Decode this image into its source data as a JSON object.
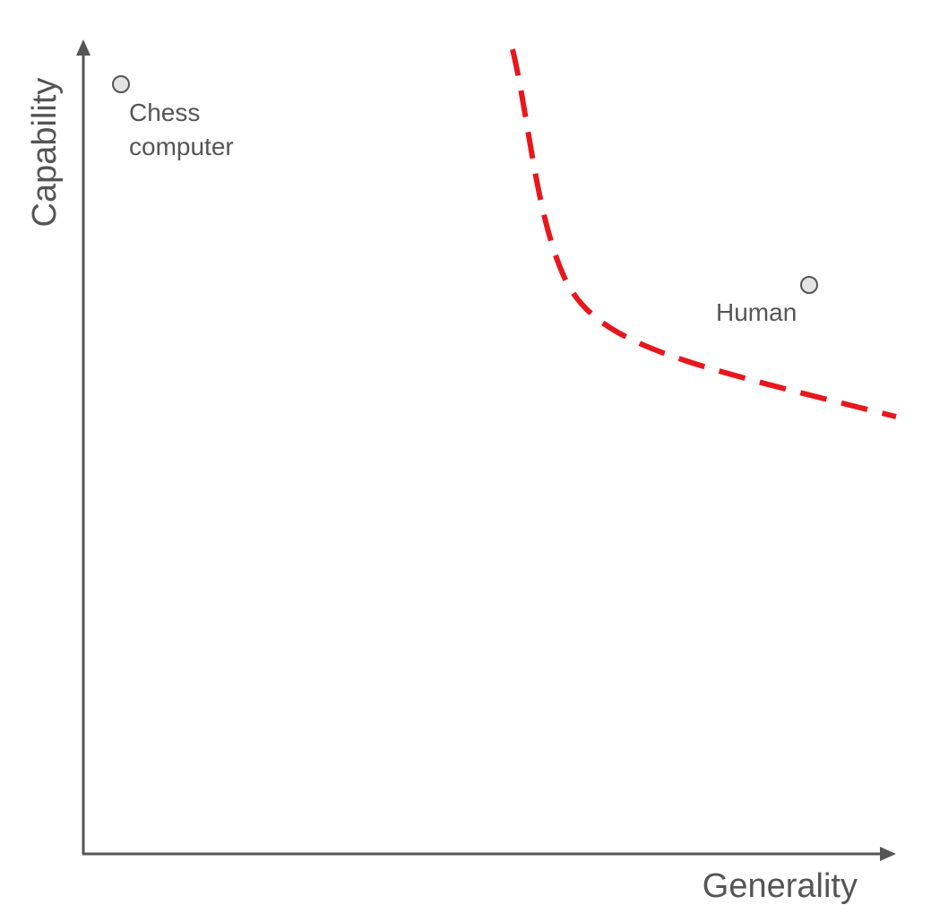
{
  "diagram": {
    "axes": {
      "x_label": "Generality",
      "y_label": "Capability",
      "color": "#555555"
    },
    "points": [
      {
        "id": "chess-computer",
        "label_lines": [
          "Chess",
          "computer"
        ],
        "marker_fill": "#e3e3e3"
      },
      {
        "id": "human",
        "label_lines": [
          "Human"
        ],
        "marker_fill": "#e3e3e3"
      }
    ],
    "frontier": {
      "style": "dashed",
      "color": "#e8161d"
    }
  }
}
